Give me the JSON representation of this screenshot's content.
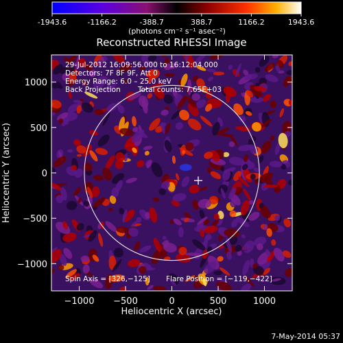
{
  "colorbar": {
    "ticks": [
      "-1943.6",
      "-1166.2",
      "-388.7",
      "388.7",
      "1166.2",
      "1943.6"
    ],
    "tick_values": [
      -1943.6,
      -1166.2,
      -388.7,
      388.7,
      1166.2,
      1943.6
    ],
    "range": [
      -1943.6,
      1943.6
    ],
    "units_label": "(photons cm⁻² s⁻¹ asec⁻²)",
    "colors": [
      "#0000ff",
      "#5a00e0",
      "#8a1070",
      "#000000",
      "#8a0000",
      "#ff3000",
      "#ffb000",
      "#ffffff"
    ]
  },
  "plot": {
    "title": "Reconstructed RHESSI Image",
    "xlabel": "Heliocentric X (arcsec)",
    "ylabel": "Heliocentric Y (arcsec)",
    "xlim": [
      -1300,
      1300
    ],
    "ylim": [
      -1300,
      1300
    ],
    "x_ticks": [
      -1000,
      -500,
      0,
      500,
      1000
    ],
    "x_tick_labels": [
      "−1000",
      "−500",
      "0",
      "500",
      "1000"
    ],
    "y_ticks": [
      -1000,
      -500,
      0,
      500,
      1000
    ],
    "y_tick_labels": [
      "−1000",
      "−500",
      "0",
      "500",
      "1000"
    ],
    "solar_radius_arcsec": 945,
    "limb_color": "#ffffff",
    "marker_position": [
      285,
      -85
    ]
  },
  "annotations": {
    "time_range": "29-Jul-2012 16:09:56.000 to 16:12:04.000",
    "detectors": "Detectors: 7F 8F 9F, Att 0",
    "energy_range": "Energy Range: 6.0 – 25.0 keV",
    "method": "Back Projection",
    "total_counts": "Total counts: 7.65E+03",
    "spin_axis": "Spin Axis = [326,−125]",
    "flare_position": "Flare Position = [−119,−422]"
  },
  "footer": {
    "date": "7-May-2014 05:37"
  }
}
